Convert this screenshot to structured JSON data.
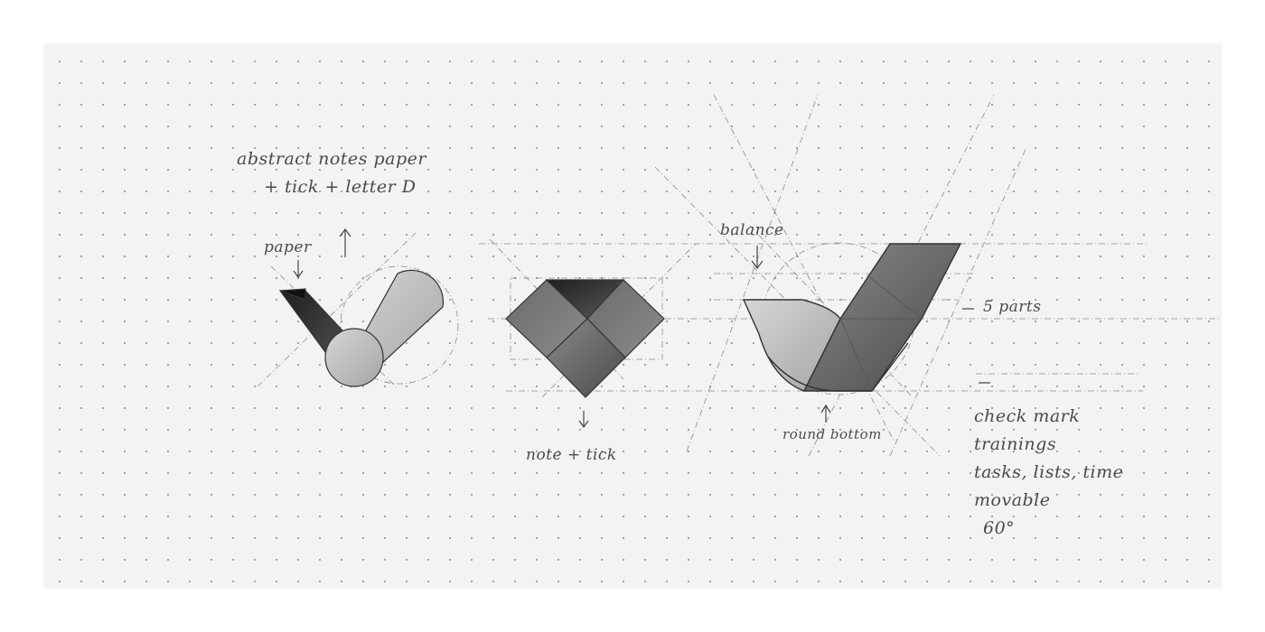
{
  "annotations": {
    "concept_line1": "abstract notes paper",
    "concept_line2": "+ tick + letter D",
    "paper": "paper",
    "note_tick": "note + tick",
    "balance": "balance",
    "parts": "5 parts",
    "round_bottom": "round bottom",
    "check_lines": [
      "check mark",
      "trainings",
      "tasks, lists, time",
      "movable",
      "60°"
    ]
  },
  "colors": {
    "paper": "#f3f3f3",
    "dots": "#9a9a9a",
    "pencil": "#3a3a3a",
    "dark_fill": "#2a2a2a",
    "mid_fill": "#7a7a7a",
    "light_fill": "#c8c8c8"
  },
  "icons": {
    "arrow_up": "arrow-up-icon",
    "arrow_down": "arrow-down-icon"
  }
}
